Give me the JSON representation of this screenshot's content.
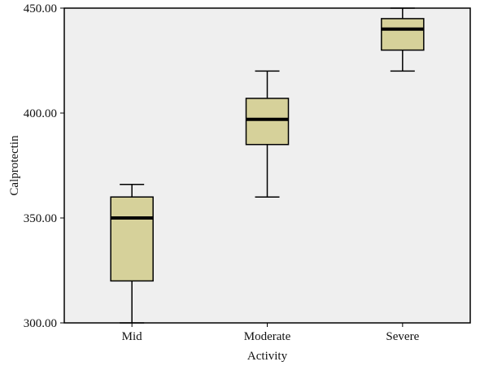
{
  "chart_data": {
    "type": "boxplot",
    "title": "",
    "xlabel": "Activity",
    "ylabel": "Calprotectin",
    "ylim": [
      300,
      450
    ],
    "yticks": [
      300,
      350,
      400,
      450
    ],
    "ytick_labels": [
      "300.00",
      "350.00",
      "400.00",
      "450.00"
    ],
    "categories": [
      "Mid",
      "Moderate",
      "Severe"
    ],
    "boxes": [
      {
        "category": "Mid",
        "whisker_low": 300,
        "q1": 320,
        "median": 350,
        "q3": 360,
        "whisker_high": 366
      },
      {
        "category": "Moderate",
        "whisker_low": 360,
        "q1": 385,
        "median": 397,
        "q3": 407,
        "whisker_high": 420
      },
      {
        "category": "Severe",
        "whisker_low": 420,
        "q1": 430,
        "median": 440,
        "q3": 445,
        "whisker_high": 450
      }
    ],
    "grid": false,
    "colors": {
      "plot_background": "#efefef",
      "box_fill": "#d6d19a",
      "stroke": "#000000"
    }
  }
}
